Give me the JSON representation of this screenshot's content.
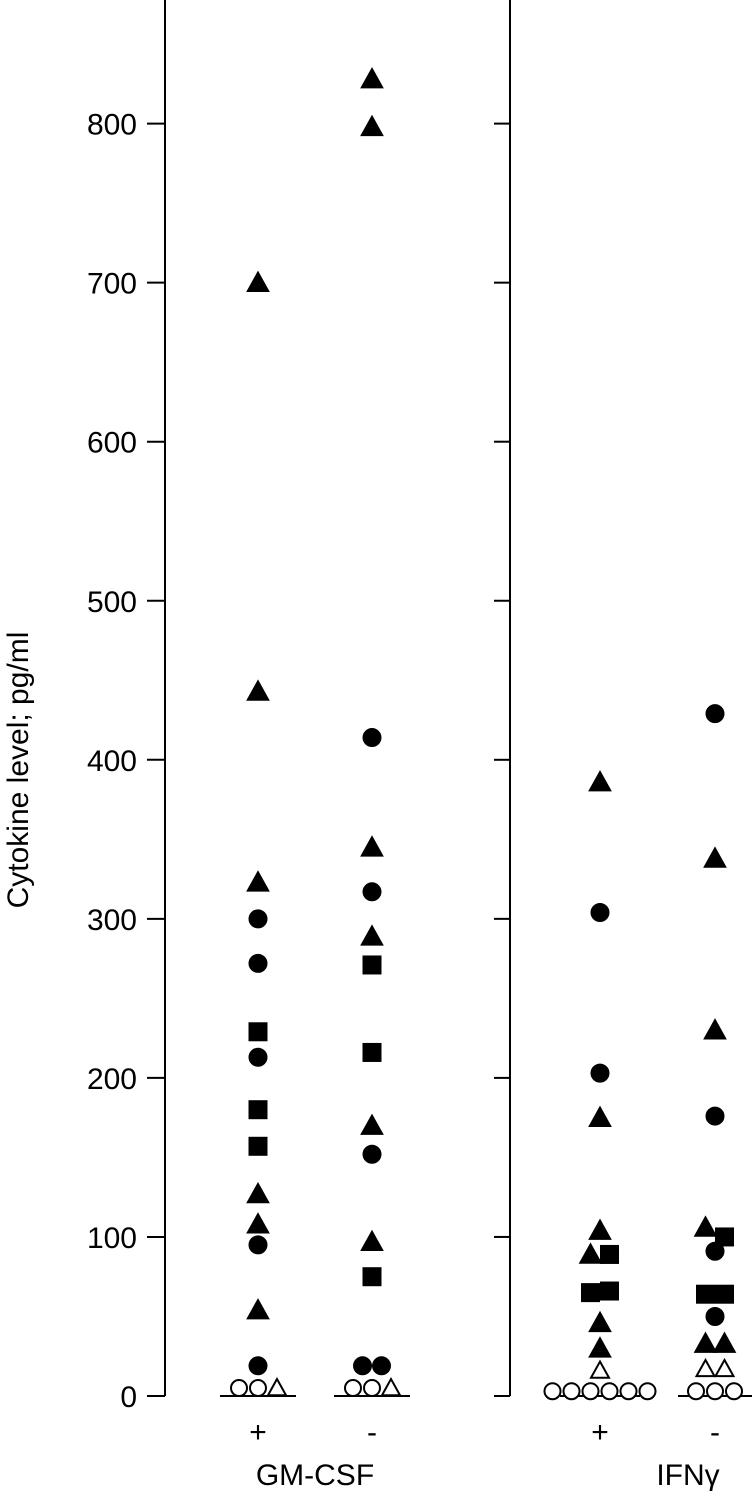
{
  "chart_data": {
    "type": "scatter",
    "ylabel": "Cytokine level; pg/ml",
    "ylim": [
      0,
      880
    ],
    "yticks": [
      "0",
      "100",
      "200",
      "300",
      "400",
      "500",
      "600",
      "700",
      "800"
    ],
    "panels": [
      {
        "name": "GM-CSF",
        "categories": [
          {
            "label": "+",
            "points": [
              {
                "shape": "triangle",
                "fill": "filled",
                "y": 700
              },
              {
                "shape": "triangle",
                "fill": "filled",
                "y": 443
              },
              {
                "shape": "triangle",
                "fill": "filled",
                "y": 323
              },
              {
                "shape": "circle",
                "fill": "filled",
                "y": 300
              },
              {
                "shape": "circle",
                "fill": "filled",
                "y": 272
              },
              {
                "shape": "square",
                "fill": "filled",
                "y": 229
              },
              {
                "shape": "circle",
                "fill": "filled",
                "y": 213
              },
              {
                "shape": "square",
                "fill": "filled",
                "y": 180
              },
              {
                "shape": "square",
                "fill": "filled",
                "y": 157
              },
              {
                "shape": "triangle",
                "fill": "filled",
                "y": 127
              },
              {
                "shape": "triangle",
                "fill": "filled",
                "y": 108
              },
              {
                "shape": "circle",
                "fill": "filled",
                "y": 95
              },
              {
                "shape": "triangle",
                "fill": "filled",
                "y": 54
              },
              {
                "shape": "circle",
                "fill": "filled",
                "y": 19
              },
              {
                "shape": "circle",
                "fill": "open",
                "y": 5
              },
              {
                "shape": "circle",
                "fill": "open",
                "y": 5
              },
              {
                "shape": "triangle",
                "fill": "open",
                "y": 5
              }
            ]
          },
          {
            "label": "-",
            "points": [
              {
                "shape": "triangle",
                "fill": "filled",
                "y": 828
              },
              {
                "shape": "triangle",
                "fill": "filled",
                "y": 798
              },
              {
                "shape": "circle",
                "fill": "filled",
                "y": 414
              },
              {
                "shape": "triangle",
                "fill": "filled",
                "y": 345
              },
              {
                "shape": "circle",
                "fill": "filled",
                "y": 317
              },
              {
                "shape": "triangle",
                "fill": "filled",
                "y": 289
              },
              {
                "shape": "square",
                "fill": "filled",
                "y": 271
              },
              {
                "shape": "square",
                "fill": "filled",
                "y": 216
              },
              {
                "shape": "triangle",
                "fill": "filled",
                "y": 170
              },
              {
                "shape": "circle",
                "fill": "filled",
                "y": 152
              },
              {
                "shape": "triangle",
                "fill": "filled",
                "y": 97
              },
              {
                "shape": "square",
                "fill": "filled",
                "y": 75
              },
              {
                "shape": "circle",
                "fill": "filled",
                "y": 19
              },
              {
                "shape": "circle",
                "fill": "filled",
                "y": 19
              },
              {
                "shape": "circle",
                "fill": "open",
                "y": 5
              },
              {
                "shape": "circle",
                "fill": "open",
                "y": 5
              },
              {
                "shape": "triangle",
                "fill": "open",
                "y": 5
              }
            ]
          }
        ]
      },
      {
        "name": "IFNγ",
        "categories": [
          {
            "label": "+",
            "points": [
              {
                "shape": "triangle",
                "fill": "filled",
                "y": 386
              },
              {
                "shape": "circle",
                "fill": "filled",
                "y": 304
              },
              {
                "shape": "circle",
                "fill": "filled",
                "y": 203
              },
              {
                "shape": "triangle",
                "fill": "filled",
                "y": 175
              },
              {
                "shape": "triangle",
                "fill": "filled",
                "y": 104
              },
              {
                "shape": "triangle",
                "fill": "filled",
                "y": 89
              },
              {
                "shape": "square",
                "fill": "filled",
                "y": 89
              },
              {
                "shape": "square",
                "fill": "filled",
                "y": 65
              },
              {
                "shape": "square",
                "fill": "filled",
                "y": 66
              },
              {
                "shape": "triangle",
                "fill": "filled",
                "y": 46
              },
              {
                "shape": "triangle",
                "fill": "filled",
                "y": 30
              },
              {
                "shape": "triangle",
                "fill": "open",
                "y": 16
              },
              {
                "shape": "circle",
                "fill": "open",
                "y": 3
              },
              {
                "shape": "circle",
                "fill": "open",
                "y": 3
              },
              {
                "shape": "circle",
                "fill": "open",
                "y": 3
              },
              {
                "shape": "circle",
                "fill": "open",
                "y": 3
              },
              {
                "shape": "circle",
                "fill": "open",
                "y": 3
              },
              {
                "shape": "circle",
                "fill": "open",
                "y": 3
              }
            ]
          },
          {
            "label": "-",
            "points": [
              {
                "shape": "circle",
                "fill": "filled",
                "y": 429
              },
              {
                "shape": "triangle",
                "fill": "filled",
                "y": 338
              },
              {
                "shape": "triangle",
                "fill": "filled",
                "y": 230
              },
              {
                "shape": "circle",
                "fill": "filled",
                "y": 176
              },
              {
                "shape": "triangle",
                "fill": "filled",
                "y": 106
              },
              {
                "shape": "square",
                "fill": "filled",
                "y": 100
              },
              {
                "shape": "circle",
                "fill": "filled",
                "y": 91
              },
              {
                "shape": "square",
                "fill": "filled",
                "y": 64
              },
              {
                "shape": "square",
                "fill": "filled",
                "y": 64
              },
              {
                "shape": "circle",
                "fill": "filled",
                "y": 50
              },
              {
                "shape": "triangle",
                "fill": "filled",
                "y": 33
              },
              {
                "shape": "triangle",
                "fill": "filled",
                "y": 33
              },
              {
                "shape": "triangle",
                "fill": "open",
                "y": 17
              },
              {
                "shape": "triangle",
                "fill": "open",
                "y": 17
              },
              {
                "shape": "circle",
                "fill": "open",
                "y": 3
              },
              {
                "shape": "circle",
                "fill": "open",
                "y": 3
              },
              {
                "shape": "circle",
                "fill": "open",
                "y": 3
              }
            ]
          }
        ]
      }
    ]
  }
}
